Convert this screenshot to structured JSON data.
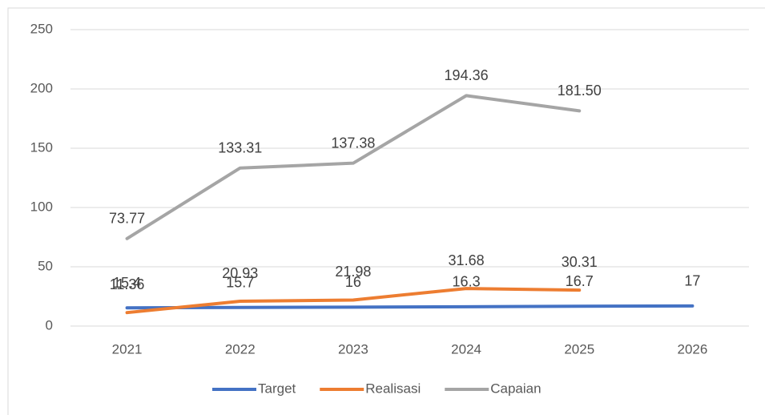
{
  "chart_data": {
    "type": "line",
    "categories": [
      "2021",
      "2022",
      "2023",
      "2024",
      "2025",
      "2026"
    ],
    "series": [
      {
        "name": "Target",
        "color": "#4472c4",
        "values": [
          15.4,
          15.7,
          16,
          16.3,
          16.7,
          17
        ]
      },
      {
        "name": "Realisasi",
        "color": "#ed7d31",
        "values": [
          11.36,
          20.93,
          21.98,
          31.68,
          30.31,
          null
        ]
      },
      {
        "name": "Capaian",
        "color": "#a5a5a5",
        "values": [
          73.77,
          133.31,
          137.38,
          194.36,
          181.5,
          null
        ],
        "value_labels": [
          "73.77",
          "133.31",
          "137.38",
          "194.36",
          "181.50",
          null
        ]
      }
    ],
    "ylim": [
      0,
      250
    ],
    "yticks": [
      0,
      50,
      100,
      150,
      200,
      250
    ],
    "grid": true,
    "legend": "bottom"
  }
}
